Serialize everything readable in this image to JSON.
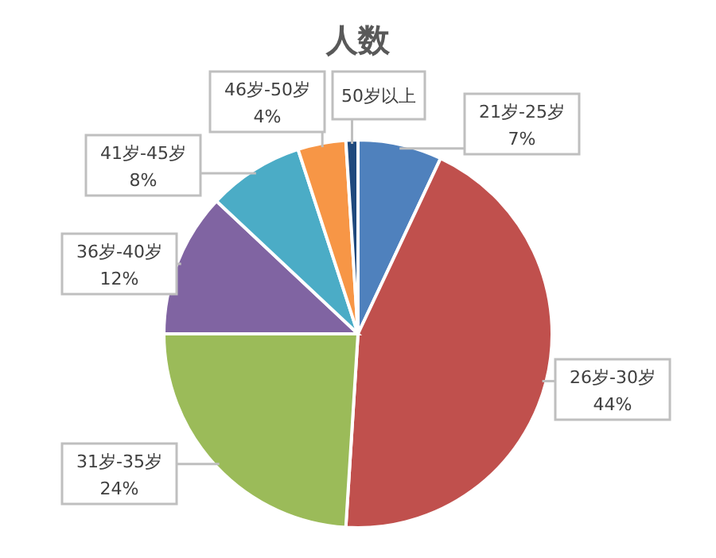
{
  "chart_data": {
    "type": "pie",
    "title": "人数",
    "categories": [
      "21岁-25岁",
      "26岁-30岁",
      "31岁-35岁",
      "36岁-40岁",
      "41岁-45岁",
      "46岁-50岁",
      "50岁以上"
    ],
    "values": [
      7,
      44,
      24,
      12,
      8,
      4,
      1
    ],
    "value_labels": [
      "7%",
      "44%",
      "24%",
      "12%",
      "8%",
      "4%",
      null
    ],
    "colors": [
      "#4f81bd",
      "#c0504d",
      "#9bbb59",
      "#8064a2",
      "#4bacc6",
      "#f79646",
      "#1f497d"
    ]
  }
}
